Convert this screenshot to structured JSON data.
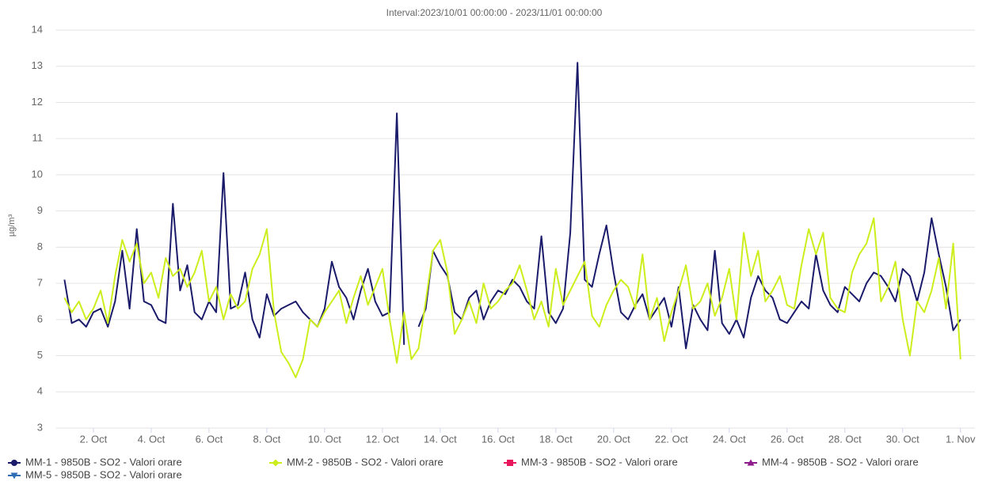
{
  "chart_data": {
    "type": "line",
    "title": "Interval:2023/10/01 00:00:00 - 2023/11/01 00:00:00",
    "y_label": "µg/m³",
    "x": [
      1,
      1.25,
      1.5,
      1.75,
      2,
      2.25,
      2.5,
      2.75,
      3,
      3.25,
      3.5,
      3.75,
      4,
      4.25,
      4.5,
      4.75,
      5,
      5.25,
      5.5,
      5.75,
      6,
      6.25,
      6.5,
      6.75,
      7,
      7.25,
      7.5,
      7.75,
      8,
      8.25,
      8.5,
      8.75,
      9,
      9.25,
      9.5,
      9.75,
      10,
      10.25,
      10.5,
      10.75,
      11,
      11.25,
      11.5,
      11.75,
      12,
      12.25,
      12.5,
      12.75,
      13,
      13.25,
      13.5,
      13.75,
      14,
      14.25,
      14.5,
      14.75,
      15,
      15.25,
      15.5,
      15.75,
      16,
      16.25,
      16.5,
      16.75,
      17,
      17.25,
      17.5,
      17.75,
      18,
      18.25,
      18.5,
      18.75,
      19,
      19.25,
      19.5,
      19.75,
      20,
      20.25,
      20.5,
      20.75,
      21,
      21.25,
      21.5,
      21.75,
      22,
      22.25,
      22.5,
      22.75,
      23,
      23.25,
      23.5,
      23.75,
      24,
      24.25,
      24.5,
      24.75,
      25,
      25.25,
      25.5,
      25.75,
      26,
      26.25,
      26.5,
      26.75,
      27,
      27.25,
      27.5,
      27.75,
      28,
      28.25,
      28.5,
      28.75,
      29,
      29.25,
      29.5,
      29.75,
      30,
      30.25,
      30.5,
      30.75,
      31,
      31.25,
      31.5,
      31.75,
      32
    ],
    "xlim": [
      0.7,
      32.5
    ],
    "xticks": [
      {
        "value": 2,
        "label": "2. Oct"
      },
      {
        "value": 4,
        "label": "4. Oct"
      },
      {
        "value": 6,
        "label": "6. Oct"
      },
      {
        "value": 8,
        "label": "8. Oct"
      },
      {
        "value": 10,
        "label": "10. Oct"
      },
      {
        "value": 12,
        "label": "12. Oct"
      },
      {
        "value": 14,
        "label": "14. Oct"
      },
      {
        "value": 16,
        "label": "16. Oct"
      },
      {
        "value": 18,
        "label": "18. Oct"
      },
      {
        "value": 20,
        "label": "20. Oct"
      },
      {
        "value": 22,
        "label": "22. Oct"
      },
      {
        "value": 24,
        "label": "24. Oct"
      },
      {
        "value": 26,
        "label": "26. Oct"
      },
      {
        "value": 28,
        "label": "28. Oct"
      },
      {
        "value": 30,
        "label": "30. Oct"
      },
      {
        "value": 32,
        "label": "1. Nov"
      }
    ],
    "ylim": [
      3,
      14
    ],
    "yticks": [
      3,
      4,
      5,
      6,
      7,
      8,
      9,
      10,
      11,
      12,
      13,
      14
    ],
    "grid": true,
    "series": [
      {
        "name": "MM-1 - 9850B - SO2 - Valori orare",
        "color": "#1b1b6b",
        "marker": "circle",
        "values": [
          7.1,
          5.9,
          6.0,
          5.8,
          6.2,
          6.3,
          5.8,
          6.5,
          7.9,
          6.3,
          8.5,
          6.5,
          6.4,
          6.0,
          5.9,
          9.2,
          6.8,
          7.5,
          6.2,
          6.0,
          6.5,
          6.2,
          10.05,
          6.3,
          6.4,
          7.3,
          6.0,
          5.5,
          6.7,
          6.1,
          6.3,
          6.4,
          6.5,
          6.2,
          6.0,
          5.8,
          6.3,
          7.6,
          6.9,
          6.6,
          6.0,
          6.8,
          7.4,
          6.5,
          6.1,
          6.2,
          11.7,
          5.3,
          null,
          5.8,
          6.3,
          7.9,
          7.5,
          7.2,
          6.2,
          6.0,
          6.6,
          6.8,
          6.0,
          6.5,
          6.8,
          6.7,
          7.1,
          6.9,
          6.5,
          6.3,
          8.3,
          6.2,
          5.9,
          6.3,
          8.4,
          13.1,
          7.1,
          6.9,
          7.8,
          8.6,
          7.3,
          6.2,
          6.0,
          6.4,
          6.7,
          6.0,
          6.3,
          6.6,
          5.8,
          6.9,
          5.2,
          6.4,
          6.0,
          5.7,
          7.9,
          5.9,
          5.6,
          6.0,
          5.5,
          6.6,
          7.2,
          6.8,
          6.6,
          6.0,
          5.9,
          6.2,
          6.5,
          6.3,
          7.8,
          6.8,
          6.4,
          6.2,
          6.9,
          6.7,
          6.5,
          7.0,
          7.3,
          7.2,
          6.9,
          6.5,
          7.4,
          7.2,
          6.5,
          7.3,
          8.8,
          7.8,
          6.9,
          5.7,
          6.0
        ]
      },
      {
        "name": "MM-2 - 9850B - SO2 - Valori orare",
        "color": "#cdee1c",
        "marker": "diamond",
        "values": [
          6.6,
          6.2,
          6.5,
          6.0,
          6.3,
          6.8,
          5.9,
          7.2,
          8.2,
          7.6,
          8.1,
          7.0,
          7.3,
          6.6,
          7.7,
          7.2,
          7.4,
          6.9,
          7.3,
          7.9,
          6.5,
          6.9,
          6.0,
          6.7,
          6.3,
          6.5,
          7.4,
          7.8,
          8.5,
          6.2,
          5.1,
          4.8,
          4.4,
          4.9,
          6.0,
          5.8,
          6.2,
          6.5,
          6.8,
          5.9,
          6.6,
          7.2,
          6.4,
          6.9,
          7.4,
          6.0,
          4.8,
          6.2,
          4.9,
          5.2,
          6.5,
          7.9,
          8.2,
          7.3,
          5.6,
          6.0,
          6.5,
          5.9,
          7.0,
          6.3,
          6.5,
          6.8,
          7.0,
          7.5,
          6.8,
          6.0,
          6.5,
          5.8,
          7.4,
          6.4,
          6.8,
          7.2,
          7.6,
          6.1,
          5.8,
          6.4,
          6.8,
          7.1,
          6.9,
          6.3,
          7.8,
          6.0,
          6.6,
          5.4,
          6.2,
          6.8,
          7.5,
          6.3,
          6.5,
          7.0,
          6.1,
          6.6,
          7.4,
          6.0,
          8.4,
          7.2,
          7.9,
          6.5,
          6.8,
          7.2,
          6.4,
          6.3,
          7.5,
          8.5,
          7.8,
          8.4,
          6.6,
          6.3,
          6.2,
          7.3,
          7.8,
          8.1,
          8.8,
          6.5,
          6.9,
          7.6,
          6.0,
          5.0,
          6.5,
          6.2,
          6.8,
          7.7,
          6.3,
          8.1,
          4.9
        ]
      },
      {
        "name": "MM-3 - 9850B - SO2 - Valori orare",
        "color": "#e8175d",
        "marker": "square",
        "values": [
          null,
          null,
          null,
          null,
          null,
          null,
          null,
          null,
          null,
          null,
          null,
          null,
          null,
          null,
          null,
          null,
          null,
          null,
          null,
          null,
          null,
          null,
          null,
          null,
          null,
          null,
          null,
          null,
          null,
          null,
          null,
          null,
          null,
          null,
          null,
          null,
          null,
          null,
          null,
          null,
          null,
          null,
          null,
          null,
          null,
          null,
          null,
          null,
          null,
          null,
          null,
          null,
          null,
          null,
          null,
          null,
          null,
          null,
          null,
          null,
          null,
          null,
          null,
          null,
          null,
          null,
          null,
          null,
          null,
          null,
          null,
          null,
          null,
          null,
          null,
          null,
          null,
          null,
          null,
          null,
          null,
          null,
          null,
          null,
          null,
          null,
          null,
          null,
          null,
          null,
          null,
          null,
          null,
          null,
          null,
          null,
          null,
          null,
          null,
          null,
          null,
          null,
          null,
          null,
          null,
          null,
          null,
          null,
          null,
          null,
          null,
          null,
          null,
          null,
          null,
          null,
          null,
          null,
          null,
          null,
          null,
          null,
          null,
          null,
          null
        ]
      },
      {
        "name": "MM-4 - 9850B - SO2 - Valori orare",
        "color": "#8e1a8e",
        "marker": "triangle",
        "values": [
          null,
          null,
          null,
          null,
          null,
          null,
          null,
          null,
          null,
          null,
          null,
          null,
          null,
          null,
          null,
          null,
          null,
          null,
          null,
          null,
          null,
          null,
          null,
          null,
          null,
          null,
          null,
          null,
          null,
          null,
          null,
          null,
          null,
          null,
          null,
          null,
          null,
          null,
          null,
          null,
          null,
          null,
          null,
          null,
          null,
          null,
          null,
          null,
          null,
          null,
          null,
          null,
          null,
          null,
          null,
          null,
          null,
          null,
          null,
          null,
          null,
          null,
          null,
          null,
          null,
          null,
          null,
          null,
          null,
          null,
          null,
          null,
          null,
          null,
          null,
          null,
          null,
          null,
          null,
          null,
          null,
          null,
          null,
          null,
          null,
          null,
          null,
          null,
          null,
          null,
          null,
          null,
          null,
          null,
          null,
          null,
          null,
          null,
          null,
          null,
          null,
          null,
          null,
          null,
          null,
          null,
          null,
          null,
          null,
          null,
          null,
          null,
          null,
          null,
          null,
          null,
          null,
          null,
          null,
          null,
          null,
          null,
          null,
          null,
          null
        ]
      },
      {
        "name": "MM-5 - 9850B - SO2 - Valori orare",
        "color": "#2f6db5",
        "marker": "triangle-down",
        "values": [
          null,
          null,
          null,
          null,
          null,
          null,
          null,
          null,
          null,
          null,
          null,
          null,
          null,
          null,
          null,
          null,
          null,
          null,
          null,
          null,
          null,
          null,
          null,
          null,
          null,
          null,
          null,
          null,
          null,
          null,
          null,
          null,
          null,
          null,
          null,
          null,
          null,
          null,
          null,
          null,
          null,
          null,
          null,
          null,
          null,
          null,
          null,
          null,
          null,
          null,
          null,
          null,
          null,
          null,
          null,
          null,
          null,
          null,
          null,
          null,
          null,
          null,
          null,
          null,
          null,
          null,
          null,
          null,
          null,
          null,
          null,
          null,
          null,
          null,
          null,
          null,
          null,
          null,
          null,
          null,
          null,
          null,
          null,
          null,
          null,
          null,
          null,
          null,
          null,
          null,
          null,
          null,
          null,
          null,
          null,
          null,
          null,
          null,
          null,
          null,
          null,
          null,
          null,
          null,
          null,
          null,
          null,
          null,
          null,
          null,
          null,
          null,
          null,
          null,
          null,
          null,
          null,
          null,
          null,
          null,
          null,
          null,
          null,
          null,
          null
        ]
      }
    ]
  }
}
